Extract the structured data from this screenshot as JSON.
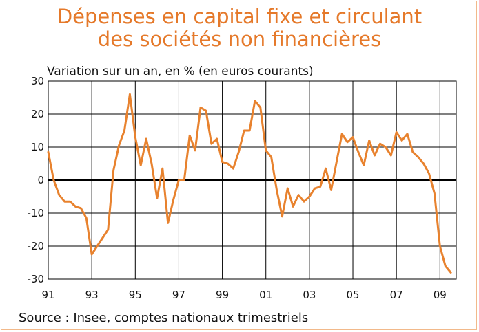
{
  "title": {
    "line1": "Dépenses en capital fixe et circulant",
    "line2": "des sociétés non financières"
  },
  "unit_label": "Variation sur un an, en % (en euros courants)",
  "source": "Source : Insee, comptes nationaux trimestriels",
  "colors": {
    "line": "#e8822e",
    "title": "#e5792a",
    "grid": "#000000",
    "frame": "#f2b98a"
  },
  "chart_data": {
    "type": "line",
    "title": "Dépenses en capital fixe et circulant des sociétés non financières",
    "ylabel": "Variation sur un an, en % (en euros courants)",
    "xlabel": "",
    "ylim": [
      -30,
      30
    ],
    "yticks": [
      30,
      20,
      10,
      0,
      -10,
      -20,
      -30
    ],
    "ytick_labels": [
      "30",
      "20",
      "10",
      "0",
      "-10",
      "-20",
      "-30"
    ],
    "xlim": [
      1991.0,
      2009.75
    ],
    "xticks": [
      1991,
      1993,
      1995,
      1997,
      1999,
      2001,
      2003,
      2005,
      2007,
      2009
    ],
    "xtick_labels": [
      "91",
      "93",
      "95",
      "97",
      "99",
      "01",
      "03",
      "05",
      "07",
      "09"
    ],
    "grid": true,
    "series": [
      {
        "name": "",
        "x": [
          1991.0,
          1991.25,
          1991.5,
          1991.75,
          1992.0,
          1992.25,
          1992.5,
          1992.75,
          1993.0,
          1993.25,
          1993.5,
          1993.75,
          1994.0,
          1994.25,
          1994.5,
          1994.75,
          1995.0,
          1995.25,
          1995.5,
          1995.75,
          1996.0,
          1996.25,
          1996.5,
          1996.75,
          1997.0,
          1997.25,
          1997.5,
          1997.75,
          1998.0,
          1998.25,
          1998.5,
          1998.75,
          1999.0,
          1999.25,
          1999.5,
          1999.75,
          2000.0,
          2000.25,
          2000.5,
          2000.75,
          2001.0,
          2001.25,
          2001.5,
          2001.75,
          2002.0,
          2002.25,
          2002.5,
          2002.75,
          2003.0,
          2003.25,
          2003.5,
          2003.75,
          2004.0,
          2004.25,
          2004.5,
          2004.75,
          2005.0,
          2005.25,
          2005.5,
          2005.75,
          2006.0,
          2006.25,
          2006.5,
          2006.75,
          2007.0,
          2007.25,
          2007.5,
          2007.75,
          2008.0,
          2008.25,
          2008.5,
          2008.75,
          2009.0,
          2009.25,
          2009.5
        ],
        "values": [
          8.5,
          0.0,
          -4.5,
          -6.5,
          -6.5,
          -8.0,
          -8.5,
          -11.5,
          -22.5,
          -20.0,
          -17.5,
          -15.0,
          3.0,
          10.5,
          15.0,
          26.0,
          13.0,
          4.5,
          12.5,
          5.0,
          -5.5,
          3.5,
          -13.0,
          -6.0,
          0.0,
          0.0,
          13.5,
          9.0,
          22.0,
          21.0,
          11.0,
          12.5,
          5.5,
          5.0,
          3.5,
          8.5,
          15.0,
          15.0,
          24.0,
          22.0,
          9.0,
          7.0,
          -3.0,
          -11.0,
          -2.5,
          -8.0,
          -4.5,
          -6.5,
          -5.0,
          -2.5,
          -2.0,
          3.5,
          -3.0,
          5.5,
          14.0,
          11.5,
          13.0,
          8.5,
          4.5,
          12.0,
          7.5,
          11.0,
          10.0,
          7.5,
          14.5,
          12.0,
          14.0,
          8.5,
          7.0,
          5.0,
          2.0,
          -4.0,
          -20.0,
          -26.0,
          -28.0
        ]
      }
    ]
  }
}
